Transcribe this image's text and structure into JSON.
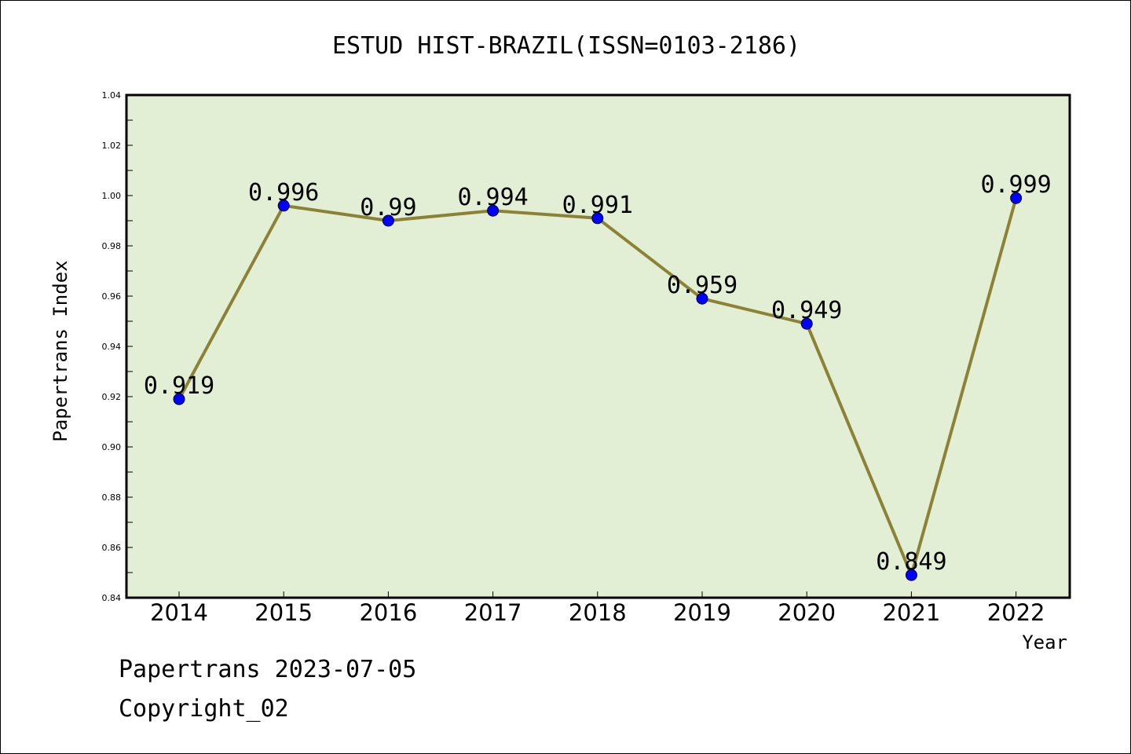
{
  "chart_data": {
    "type": "line",
    "title": "ESTUD HIST-BRAZIL(ISSN=0103-2186)",
    "xlabel": "Year",
    "ylabel": "Papertrans Index",
    "categories": [
      "2014",
      "2015",
      "2016",
      "2017",
      "2018",
      "2019",
      "2020",
      "2021",
      "2022"
    ],
    "series": [
      {
        "values": [
          0.919,
          0.996,
          0.99,
          0.994,
          0.991,
          0.959,
          0.949,
          0.849,
          0.999
        ],
        "labels": [
          "0.919",
          "0.996",
          "0.99",
          "0.994",
          "0.991",
          "0.959",
          "0.949",
          "0.849",
          "0.999"
        ]
      }
    ],
    "ylim": [
      0.84,
      1.04
    ],
    "yticks": [
      "0.84",
      "0.86",
      "0.88",
      "0.90",
      "0.92",
      "0.94",
      "0.96",
      "0.98",
      "1.00",
      "1.02",
      "1.04"
    ],
    "grid": false,
    "colors": {
      "plot_background": "#e2efd5",
      "line": "#8b8236",
      "marker": "#0000ff"
    }
  },
  "footer": {
    "line1": "Papertrans 2023-07-05",
    "line2": "Copyright_02"
  }
}
